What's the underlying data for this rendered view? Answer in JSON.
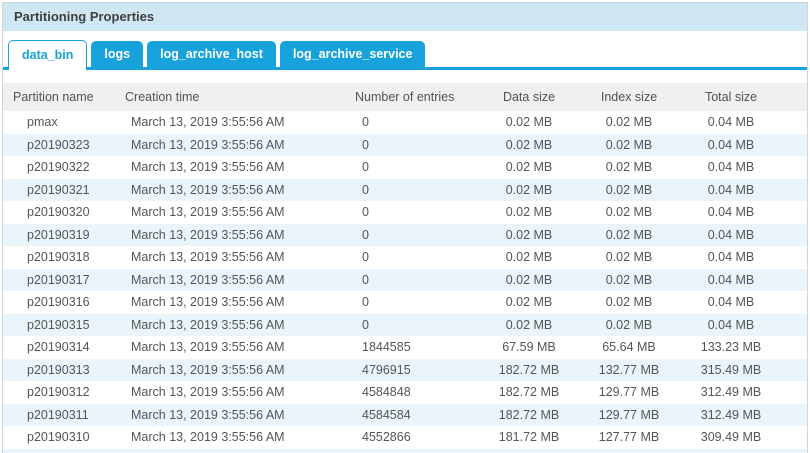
{
  "panel": {
    "title": "Partitioning Properties"
  },
  "tabs": [
    {
      "label": "data_bin",
      "active": true
    },
    {
      "label": "logs",
      "active": false
    },
    {
      "label": "log_archive_host",
      "active": false
    },
    {
      "label": "log_archive_service",
      "active": false
    }
  ],
  "table": {
    "columns": [
      "Partition name",
      "Creation time",
      "Number of entries",
      "Data size",
      "Index size",
      "Total size"
    ],
    "rows": [
      {
        "partition": "pmax",
        "creation": "March 13, 2019 3:55:56 AM",
        "entries": "0",
        "data_size": "0.02 MB",
        "index_size": "0.02 MB",
        "total_size": "0.04 MB"
      },
      {
        "partition": "p20190323",
        "creation": "March 13, 2019 3:55:56 AM",
        "entries": "0",
        "data_size": "0.02 MB",
        "index_size": "0.02 MB",
        "total_size": "0.04 MB"
      },
      {
        "partition": "p20190322",
        "creation": "March 13, 2019 3:55:56 AM",
        "entries": "0",
        "data_size": "0.02 MB",
        "index_size": "0.02 MB",
        "total_size": "0.04 MB"
      },
      {
        "partition": "p20190321",
        "creation": "March 13, 2019 3:55:56 AM",
        "entries": "0",
        "data_size": "0.02 MB",
        "index_size": "0.02 MB",
        "total_size": "0.04 MB"
      },
      {
        "partition": "p20190320",
        "creation": "March 13, 2019 3:55:56 AM",
        "entries": "0",
        "data_size": "0.02 MB",
        "index_size": "0.02 MB",
        "total_size": "0.04 MB"
      },
      {
        "partition": "p20190319",
        "creation": "March 13, 2019 3:55:56 AM",
        "entries": "0",
        "data_size": "0.02 MB",
        "index_size": "0.02 MB",
        "total_size": "0.04 MB"
      },
      {
        "partition": "p20190318",
        "creation": "March 13, 2019 3:55:56 AM",
        "entries": "0",
        "data_size": "0.02 MB",
        "index_size": "0.02 MB",
        "total_size": "0.04 MB"
      },
      {
        "partition": "p20190317",
        "creation": "March 13, 2019 3:55:56 AM",
        "entries": "0",
        "data_size": "0.02 MB",
        "index_size": "0.02 MB",
        "total_size": "0.04 MB"
      },
      {
        "partition": "p20190316",
        "creation": "March 13, 2019 3:55:56 AM",
        "entries": "0",
        "data_size": "0.02 MB",
        "index_size": "0.02 MB",
        "total_size": "0.04 MB"
      },
      {
        "partition": "p20190315",
        "creation": "March 13, 2019 3:55:56 AM",
        "entries": "0",
        "data_size": "0.02 MB",
        "index_size": "0.02 MB",
        "total_size": "0.04 MB"
      },
      {
        "partition": "p20190314",
        "creation": "March 13, 2019 3:55:56 AM",
        "entries": "1844585",
        "data_size": "67.59 MB",
        "index_size": "65.64 MB",
        "total_size": "133.23 MB"
      },
      {
        "partition": "p20190313",
        "creation": "March 13, 2019 3:55:56 AM",
        "entries": "4796915",
        "data_size": "182.72 MB",
        "index_size": "132.77 MB",
        "total_size": "315.49 MB"
      },
      {
        "partition": "p20190312",
        "creation": "March 13, 2019 3:55:56 AM",
        "entries": "4584848",
        "data_size": "182.72 MB",
        "index_size": "129.77 MB",
        "total_size": "312.49 MB"
      },
      {
        "partition": "p20190311",
        "creation": "March 13, 2019 3:55:56 AM",
        "entries": "4584584",
        "data_size": "182.72 MB",
        "index_size": "129.77 MB",
        "total_size": "312.49 MB"
      },
      {
        "partition": "p20190310",
        "creation": "March 13, 2019 3:55:56 AM",
        "entries": "4552866",
        "data_size": "181.72 MB",
        "index_size": "127.77 MB",
        "total_size": "309.49 MB"
      }
    ]
  },
  "colors": {
    "accent": "#17a2db",
    "titlebar_bg": "#cee7f2",
    "alt_row_bg": "#e9f5fb",
    "header_bg": "#f0f0f1"
  }
}
